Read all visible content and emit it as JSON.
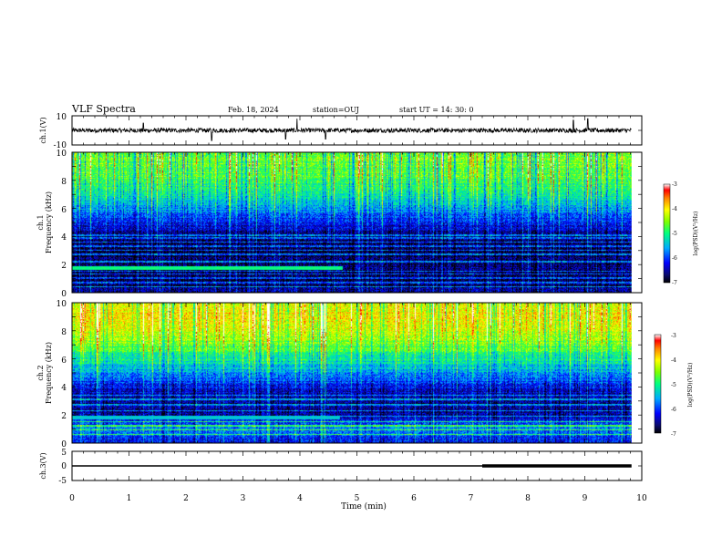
{
  "header": {
    "title": "VLF Spectra",
    "date": "Feb. 18, 2024",
    "station": "station=OUJ",
    "start_time": "start  UT =   14: 30: 0"
  },
  "chart_data": [
    {
      "type": "line",
      "id": "ch1-waveform",
      "ylabel": "ch.1(V)",
      "ylim": [
        -10,
        10
      ],
      "y_ticks": [
        "10",
        "-10"
      ],
      "xlim": [
        0,
        10
      ],
      "baseline": 0,
      "noise_amplitude": 1.5,
      "spikes": [
        {
          "t": 1.25,
          "v": 5
        },
        {
          "t": 2.45,
          "v": -7
        },
        {
          "t": 3.75,
          "v": -6
        },
        {
          "t": 3.95,
          "v": 8
        },
        {
          "t": 4.45,
          "v": -6
        },
        {
          "t": 8.8,
          "v": 7
        },
        {
          "t": 9.05,
          "v": 8
        }
      ]
    },
    {
      "type": "heatmap",
      "id": "ch1-spectrogram",
      "ylabel_lines": [
        "ch.1",
        "Frequency (kHz)"
      ],
      "ylim": [
        0,
        10
      ],
      "y_ticks": [
        "0",
        "2",
        "4",
        "6",
        "8",
        "10"
      ],
      "xlim": [
        0,
        10
      ],
      "data_xmax": 9.82,
      "colorbar": {
        "label": "log(PSD)(V²/Hz)",
        "range": [
          -7,
          -3
        ],
        "ticks": [
          "-3",
          "-4",
          "-5",
          "-6",
          "-7"
        ]
      },
      "profile_khz": [
        0,
        1,
        2,
        3,
        4,
        5,
        6,
        7,
        8,
        9,
        10
      ],
      "profile_log_psd": [
        -6.5,
        -6.8,
        -6.6,
        -6.8,
        -6.7,
        -6.2,
        -5.6,
        -5.1,
        -4.8,
        -4.6,
        -4.6
      ],
      "noise_lines_khz": [
        0.4,
        0.7,
        1.0,
        1.3,
        1.5,
        2.2,
        2.7,
        3.0,
        3.3,
        3.6,
        3.9,
        4.1
      ],
      "band_event": {
        "khz": 1.75,
        "t_end": 4.75,
        "log_psd": -5.0
      }
    },
    {
      "type": "heatmap",
      "id": "ch2-spectrogram",
      "ylabel_lines": [
        "ch.2",
        "Frequency (kHz)"
      ],
      "ylim": [
        0,
        10
      ],
      "y_ticks": [
        "0",
        "2",
        "4",
        "6",
        "8",
        "10"
      ],
      "xlim": [
        0,
        10
      ],
      "data_xmax": 9.82,
      "colorbar": {
        "label": "log(PSD)(V²/Hz)",
        "range": [
          -7,
          -3
        ],
        "ticks": [
          "-3",
          "-4",
          "-5",
          "-6",
          "-7"
        ]
      },
      "profile_khz": [
        0,
        1,
        2,
        3,
        4,
        5,
        6,
        7,
        8,
        9,
        10
      ],
      "profile_log_psd": [
        -6.2,
        -5.6,
        -6.5,
        -6.6,
        -6.2,
        -5.6,
        -5.1,
        -4.6,
        -4.2,
        -4.0,
        -4.1
      ],
      "noise_lines_khz": [
        0.6,
        0.9,
        1.2,
        1.5,
        1.9,
        2.3,
        2.7,
        3.1,
        3.4
      ],
      "band_event": {
        "khz": 1.8,
        "t_end": 4.7,
        "log_psd": -5.4
      }
    },
    {
      "type": "line",
      "id": "ch3-waveform",
      "ylabel": "ch.3(V)",
      "ylim": [
        -5,
        5
      ],
      "y_ticks": [
        "5",
        "0",
        "-5"
      ],
      "xlim": [
        0,
        10
      ],
      "baseline": 0,
      "thick_from": 7.2,
      "xlabel": "Time (min)",
      "x_ticks": [
        "0",
        "1",
        "2",
        "3",
        "4",
        "5",
        "6",
        "7",
        "8",
        "9",
        "10"
      ]
    }
  ]
}
